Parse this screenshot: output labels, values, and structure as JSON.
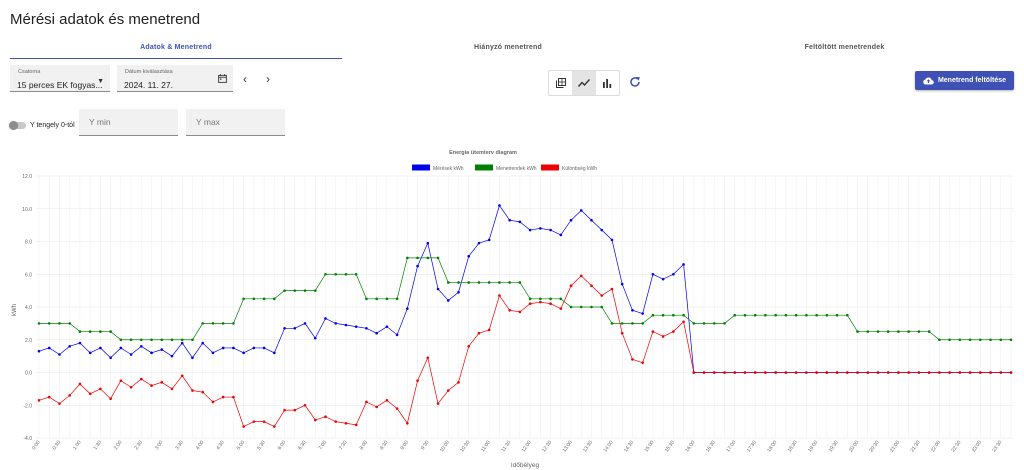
{
  "page": {
    "title": "Mérési adatok és menetrend"
  },
  "tabs": [
    {
      "label": "Adatok & Menetrend",
      "active": true
    },
    {
      "label": "Hiányzó menetrend",
      "active": false
    },
    {
      "label": "Feltöltött menetrendek",
      "active": false
    }
  ],
  "controls": {
    "channel": {
      "label": "Csatorna",
      "value": "15 perces EK fogyas..."
    },
    "date": {
      "label": "Dátum kiválasztása",
      "value": "2024. 11. 27."
    },
    "prev_icon": "chevron-left-icon",
    "next_icon": "chevron-right-icon",
    "view_modes": [
      "table-icon",
      "line-chart-icon",
      "bar-chart-icon"
    ],
    "active_view": "line-chart-icon",
    "upload_label": "Menetrend feltöltése",
    "y_zero_label": "Y tengely 0-tól",
    "y_min_placeholder": "Y min",
    "y_max_placeholder": "Y max"
  },
  "colors": {
    "accent": "#3f51b5",
    "series_measured": "#0000ee",
    "series_schedule": "#008000",
    "series_diff": "#ee0000"
  },
  "chart_data": {
    "type": "line",
    "title": "Energia ütemterv diagram",
    "xlabel": "Időbélyeg",
    "ylabel": "kWh",
    "ylim": [
      -4,
      12
    ],
    "yticks": [
      "12.0",
      "10.0",
      "8.0",
      "6.0",
      "4.0",
      "2.0",
      "0.0",
      "-2.0",
      "-4.0"
    ],
    "grid": true,
    "legend_position": "top",
    "x": [
      "0:00",
      "0:15",
      "0:30",
      "0:45",
      "1:00",
      "1:15",
      "1:30",
      "1:45",
      "2:00",
      "2:15",
      "2:30",
      "2:45",
      "3:00",
      "3:15",
      "3:30",
      "3:45",
      "4:00",
      "4:15",
      "4:30",
      "4:45",
      "5:00",
      "5:15",
      "5:30",
      "5:45",
      "6:00",
      "6:15",
      "6:30",
      "6:45",
      "7:00",
      "7:15",
      "7:30",
      "7:45",
      "8:00",
      "8:15",
      "8:30",
      "8:45",
      "9:00",
      "9:15",
      "9:30",
      "9:45",
      "10:00",
      "10:15",
      "10:30",
      "10:45",
      "11:00",
      "11:15",
      "11:30",
      "11:45",
      "12:00",
      "12:15",
      "12:30",
      "12:45",
      "13:00",
      "13:15",
      "13:30",
      "13:45",
      "14:00",
      "14:15",
      "14:30",
      "14:45",
      "15:00",
      "15:15",
      "15:30",
      "15:45",
      "16:00",
      "16:15",
      "16:30",
      "16:45",
      "17:00",
      "17:15",
      "17:30",
      "17:45",
      "18:00",
      "18:15",
      "18:30",
      "18:45",
      "19:00",
      "19:15",
      "19:30",
      "19:45",
      "20:00",
      "20:15",
      "20:30",
      "20:45",
      "21:00",
      "21:15",
      "21:30",
      "21:45",
      "22:00",
      "22:15",
      "22:30",
      "22:45",
      "23:00",
      "23:15",
      "23:30",
      "23:45"
    ],
    "xtick_labels": [
      "0:00",
      "0:30",
      "1:00",
      "1:30",
      "2:00",
      "2:30",
      "3:00",
      "3:30",
      "4:00",
      "4:30",
      "5:00",
      "5:30",
      "6:00",
      "6:30",
      "7:00",
      "7:30",
      "8:00",
      "8:30",
      "9:00",
      "9:30",
      "10:00",
      "10:30",
      "11:00",
      "11:30",
      "12:00",
      "12:30",
      "13:00",
      "13:30",
      "14:00",
      "14:30",
      "15:00",
      "15:30",
      "16:00",
      "16:30",
      "17:00",
      "17:30",
      "18:00",
      "18:30",
      "19:00",
      "19:30",
      "20:00",
      "20:30",
      "21:00",
      "21:30",
      "22:00",
      "22:30",
      "23:00",
      "23:30"
    ],
    "series": [
      {
        "name": "Mérések kWh",
        "color": "#0000ee",
        "values": [
          1.3,
          1.5,
          1.1,
          1.6,
          1.8,
          1.2,
          1.5,
          0.9,
          1.5,
          1.1,
          1.6,
          1.2,
          1.4,
          1.0,
          1.8,
          0.9,
          1.8,
          1.2,
          1.5,
          1.5,
          1.2,
          1.5,
          1.5,
          1.2,
          2.7,
          2.7,
          3.0,
          2.1,
          3.3,
          3.0,
          2.9,
          2.8,
          2.7,
          2.4,
          2.8,
          2.3,
          3.9,
          6.5,
          7.9,
          5.1,
          4.4,
          4.9,
          7.1,
          7.9,
          8.1,
          10.2,
          9.3,
          9.2,
          8.7,
          8.8,
          8.7,
          8.4,
          9.3,
          9.9,
          9.3,
          8.7,
          8.1,
          5.4,
          3.8,
          3.6,
          6.0,
          5.7,
          6.0,
          6.6,
          0,
          0,
          0,
          0,
          0,
          0,
          0,
          0,
          0,
          0,
          0,
          0,
          0,
          0,
          0,
          0,
          0,
          0,
          0,
          0,
          0,
          0,
          0,
          0,
          0,
          0,
          0,
          0,
          0,
          0,
          0,
          0
        ]
      },
      {
        "name": "Menetrendek kWh",
        "color": "#008000",
        "values": [
          3,
          3,
          3,
          3,
          2.5,
          2.5,
          2.5,
          2.5,
          2,
          2,
          2,
          2,
          2,
          2,
          2,
          2,
          3,
          3,
          3,
          3,
          4.5,
          4.5,
          4.5,
          4.5,
          5,
          5,
          5,
          5,
          6,
          6,
          6,
          6,
          4.5,
          4.5,
          4.5,
          4.5,
          7,
          7,
          7,
          7,
          5.5,
          5.5,
          5.5,
          5.5,
          5.5,
          5.5,
          5.5,
          5.5,
          4.5,
          4.5,
          4.5,
          4.5,
          4,
          4,
          4,
          4,
          3,
          3,
          3,
          3,
          3.5,
          3.5,
          3.5,
          3.5,
          3,
          3,
          3,
          3,
          3.5,
          3.5,
          3.5,
          3.5,
          3.5,
          3.5,
          3.5,
          3.5,
          3.5,
          3.5,
          3.5,
          3.5,
          2.5,
          2.5,
          2.5,
          2.5,
          2.5,
          2.5,
          2.5,
          2.5,
          2,
          2,
          2,
          2,
          2,
          2,
          2,
          2
        ]
      },
      {
        "name": "Különbség kWh",
        "color": "#ee0000",
        "values": [
          -1.7,
          -1.5,
          -1.9,
          -1.4,
          -0.7,
          -1.3,
          -1.0,
          -1.6,
          -0.5,
          -0.9,
          -0.4,
          -0.8,
          -0.6,
          -1.0,
          -0.2,
          -1.1,
          -1.2,
          -1.8,
          -1.5,
          -1.5,
          -3.3,
          -3.0,
          -3.0,
          -3.3,
          -2.3,
          -2.3,
          -2.0,
          -2.9,
          -2.7,
          -3.0,
          -3.1,
          -3.2,
          -1.8,
          -2.1,
          -1.7,
          -2.2,
          -3.1,
          -0.5,
          0.9,
          -1.9,
          -1.1,
          -0.6,
          1.6,
          2.4,
          2.6,
          4.7,
          3.8,
          3.7,
          4.2,
          4.3,
          4.2,
          3.9,
          5.3,
          5.9,
          5.3,
          4.7,
          5.1,
          2.4,
          0.8,
          0.6,
          2.5,
          2.2,
          2.5,
          3.1,
          0,
          0,
          0,
          0,
          0,
          0,
          0,
          0,
          0,
          0,
          0,
          0,
          0,
          0,
          0,
          0,
          0,
          0,
          0,
          0,
          0,
          0,
          0,
          0,
          0,
          0,
          0,
          0,
          0,
          0,
          0,
          0
        ]
      }
    ]
  }
}
